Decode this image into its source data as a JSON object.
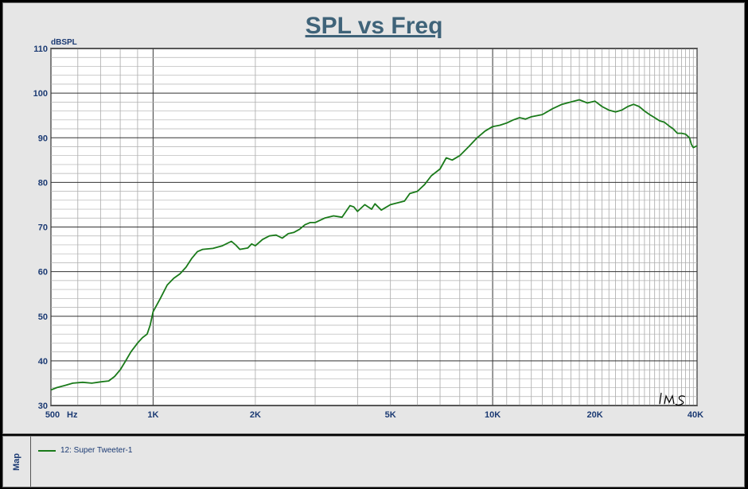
{
  "chart_data": {
    "type": "line",
    "title": "SPL vs Freq",
    "ylabel": "dBSPL",
    "xunit": "Hz",
    "xscale": "log",
    "xlim": [
      500,
      40000
    ],
    "ylim": [
      30,
      110
    ],
    "grid": true,
    "y_ticks": [
      "30",
      "40",
      "50",
      "60",
      "70",
      "80",
      "90",
      "100",
      "110"
    ],
    "x_ticks": [
      {
        "value": 500,
        "label": "500"
      },
      {
        "value": 1000,
        "label": "1K"
      },
      {
        "value": 2000,
        "label": "2K"
      },
      {
        "value": 5000,
        "label": "5K"
      },
      {
        "value": 10000,
        "label": "10K"
      },
      {
        "value": 20000,
        "label": "20K"
      },
      {
        "value": 40000,
        "label": "40K"
      }
    ],
    "series": [
      {
        "name": "12: Super Tweeter-1",
        "color": "#1a7a1a",
        "points": [
          [
            500,
            33.5
          ],
          [
            520,
            34
          ],
          [
            550,
            34.5
          ],
          [
            580,
            35
          ],
          [
            620,
            35.2
          ],
          [
            660,
            35
          ],
          [
            700,
            35.3
          ],
          [
            740,
            35.5
          ],
          [
            770,
            36.5
          ],
          [
            800,
            38
          ],
          [
            830,
            40
          ],
          [
            860,
            42
          ],
          [
            900,
            44
          ],
          [
            930,
            45.2
          ],
          [
            960,
            46
          ],
          [
            980,
            48
          ],
          [
            1000,
            51
          ],
          [
            1050,
            54
          ],
          [
            1100,
            57
          ],
          [
            1150,
            58.5
          ],
          [
            1200,
            59.5
          ],
          [
            1250,
            61
          ],
          [
            1300,
            63
          ],
          [
            1350,
            64.5
          ],
          [
            1400,
            65
          ],
          [
            1500,
            65.2
          ],
          [
            1600,
            65.8
          ],
          [
            1700,
            66.8
          ],
          [
            1750,
            66
          ],
          [
            1800,
            65
          ],
          [
            1900,
            65.3
          ],
          [
            1950,
            66.2
          ],
          [
            2000,
            65.8
          ],
          [
            2100,
            67.2
          ],
          [
            2200,
            68
          ],
          [
            2300,
            68.2
          ],
          [
            2400,
            67.5
          ],
          [
            2500,
            68.5
          ],
          [
            2600,
            68.8
          ],
          [
            2700,
            69.5
          ],
          [
            2800,
            70.5
          ],
          [
            2900,
            71
          ],
          [
            3000,
            71
          ],
          [
            3200,
            72
          ],
          [
            3400,
            72.5
          ],
          [
            3600,
            72.2
          ],
          [
            3800,
            74.8
          ],
          [
            3900,
            74.5
          ],
          [
            4000,
            73.5
          ],
          [
            4200,
            75
          ],
          [
            4400,
            74
          ],
          [
            4500,
            75.2
          ],
          [
            4700,
            73.8
          ],
          [
            5000,
            75
          ],
          [
            5300,
            75.5
          ],
          [
            5500,
            75.8
          ],
          [
            5700,
            77.5
          ],
          [
            6000,
            78
          ],
          [
            6300,
            79.5
          ],
          [
            6600,
            81.5
          ],
          [
            7000,
            83
          ],
          [
            7300,
            85.5
          ],
          [
            7600,
            85
          ],
          [
            8000,
            86
          ],
          [
            8500,
            88
          ],
          [
            9000,
            90
          ],
          [
            9500,
            91.5
          ],
          [
            10000,
            92.5
          ],
          [
            10500,
            92.8
          ],
          [
            11000,
            93.3
          ],
          [
            11500,
            94
          ],
          [
            12000,
            94.5
          ],
          [
            12500,
            94.2
          ],
          [
            13000,
            94.7
          ],
          [
            14000,
            95.2
          ],
          [
            15000,
            96.5
          ],
          [
            16000,
            97.5
          ],
          [
            17000,
            98
          ],
          [
            18000,
            98.5
          ],
          [
            19000,
            97.8
          ],
          [
            20000,
            98.2
          ],
          [
            21000,
            97
          ],
          [
            22000,
            96.2
          ],
          [
            23000,
            95.8
          ],
          [
            24000,
            96.2
          ],
          [
            25000,
            97
          ],
          [
            26000,
            97.5
          ],
          [
            27000,
            97
          ],
          [
            28000,
            96
          ],
          [
            29000,
            95.2
          ],
          [
            30000,
            94.5
          ],
          [
            31000,
            93.8
          ],
          [
            32000,
            93.5
          ],
          [
            33000,
            92.7
          ],
          [
            34000,
            92
          ],
          [
            35000,
            91
          ],
          [
            36000,
            91
          ],
          [
            37000,
            90.8
          ],
          [
            38000,
            90
          ],
          [
            38500,
            88.5
          ],
          [
            39000,
            87.8
          ],
          [
            40000,
            88.2
          ]
        ]
      }
    ]
  },
  "legend_panel": {
    "tab_label": "Map",
    "entries": [
      {
        "label": "12: Super Tweeter-1",
        "color": "#1a7a1a"
      }
    ]
  },
  "watermark": "LMS"
}
